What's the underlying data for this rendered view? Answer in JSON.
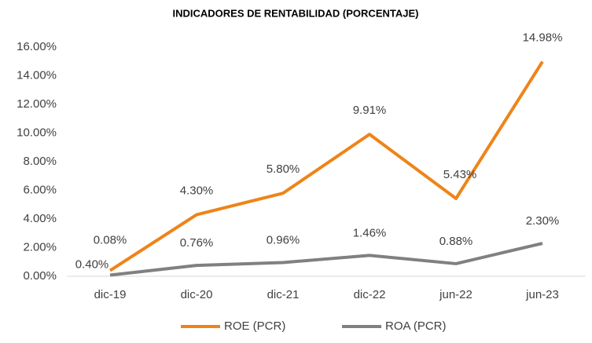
{
  "chart_data": {
    "type": "line",
    "title": "INDICADORES DE RENTABILIDAD (PORCENTAJE)",
    "categories": [
      "dic-19",
      "dic-20",
      "dic-21",
      "dic-22",
      "jun-22",
      "jun-23"
    ],
    "series": [
      {
        "name": "ROE (PCR)",
        "color": "#ee8418",
        "values": [
          0.4,
          4.3,
          5.8,
          9.91,
          5.43,
          14.98
        ],
        "value_labels": [
          "0.40%",
          "4.30%",
          "5.80%",
          "9.91%",
          "5.43%",
          "14.98%"
        ]
      },
      {
        "name": "ROA (PCR)",
        "color": "#808080",
        "values": [
          0.08,
          0.76,
          0.96,
          1.46,
          0.88,
          2.3
        ],
        "value_labels": [
          "0.08%",
          "0.76%",
          "0.96%",
          "1.46%",
          "0.88%",
          "2.30%"
        ]
      }
    ],
    "ylim": [
      0,
      16
    ],
    "yticks": [
      {
        "value": 0,
        "label": "0.00%"
      },
      {
        "value": 2,
        "label": "2.00%"
      },
      {
        "value": 4,
        "label": "4.00%"
      },
      {
        "value": 6,
        "label": "6.00%"
      },
      {
        "value": 8,
        "label": "8.00%"
      },
      {
        "value": 10,
        "label": "10.00%"
      },
      {
        "value": 12,
        "label": "12.00%"
      },
      {
        "value": 14,
        "label": "14.00%"
      },
      {
        "value": 16,
        "label": "16.00%"
      }
    ],
    "grid": false,
    "legend": "bottom"
  }
}
